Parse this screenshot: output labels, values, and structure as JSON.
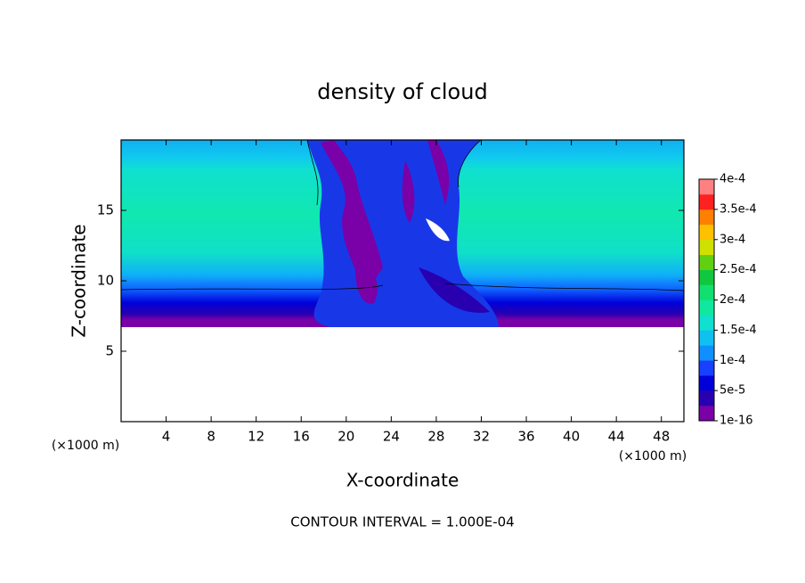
{
  "chart_data": {
    "type": "contour",
    "title": "density of cloud",
    "x_label": "X-coordinate",
    "y_label": "Z-coordinate",
    "x_unit_label": "(×1000 m)",
    "y_unit_label": "(×1000 m)",
    "annotation": "CONTOUR INTERVAL = 1.000E-04",
    "xlim": [
      0,
      50
    ],
    "ylim": [
      0,
      20
    ],
    "xticks": [
      4,
      8,
      12,
      16,
      20,
      24,
      28,
      32,
      36,
      40,
      44,
      48
    ],
    "yticks": [
      5,
      10,
      15
    ],
    "colorbar": {
      "lim": [
        1e-16,
        0.0004
      ],
      "ticks": [
        {
          "value": 1e-16,
          "label": "1e-16"
        },
        {
          "value": 5e-05,
          "label": "5e-5"
        },
        {
          "value": 0.0001,
          "label": "1e-4"
        },
        {
          "value": 0.00015,
          "label": "1.5e-4"
        },
        {
          "value": 0.0002,
          "label": "2e-4"
        },
        {
          "value": 0.00025,
          "label": "2.5e-4"
        },
        {
          "value": 0.0003,
          "label": "3e-4"
        },
        {
          "value": 0.00035,
          "label": "3.5e-4"
        },
        {
          "value": 0.0004,
          "label": "4e-4"
        }
      ],
      "colors": [
        "#7a00a8",
        "#2800b0",
        "#0000d8",
        "#1840ff",
        "#1090ff",
        "#10c0f0",
        "#10e0d0",
        "#10e8a0",
        "#10e070",
        "#10c840",
        "#60d010",
        "#d0e000",
        "#ffc000",
        "#ff8000",
        "#ff2020",
        "#ff8080"
      ]
    }
  }
}
